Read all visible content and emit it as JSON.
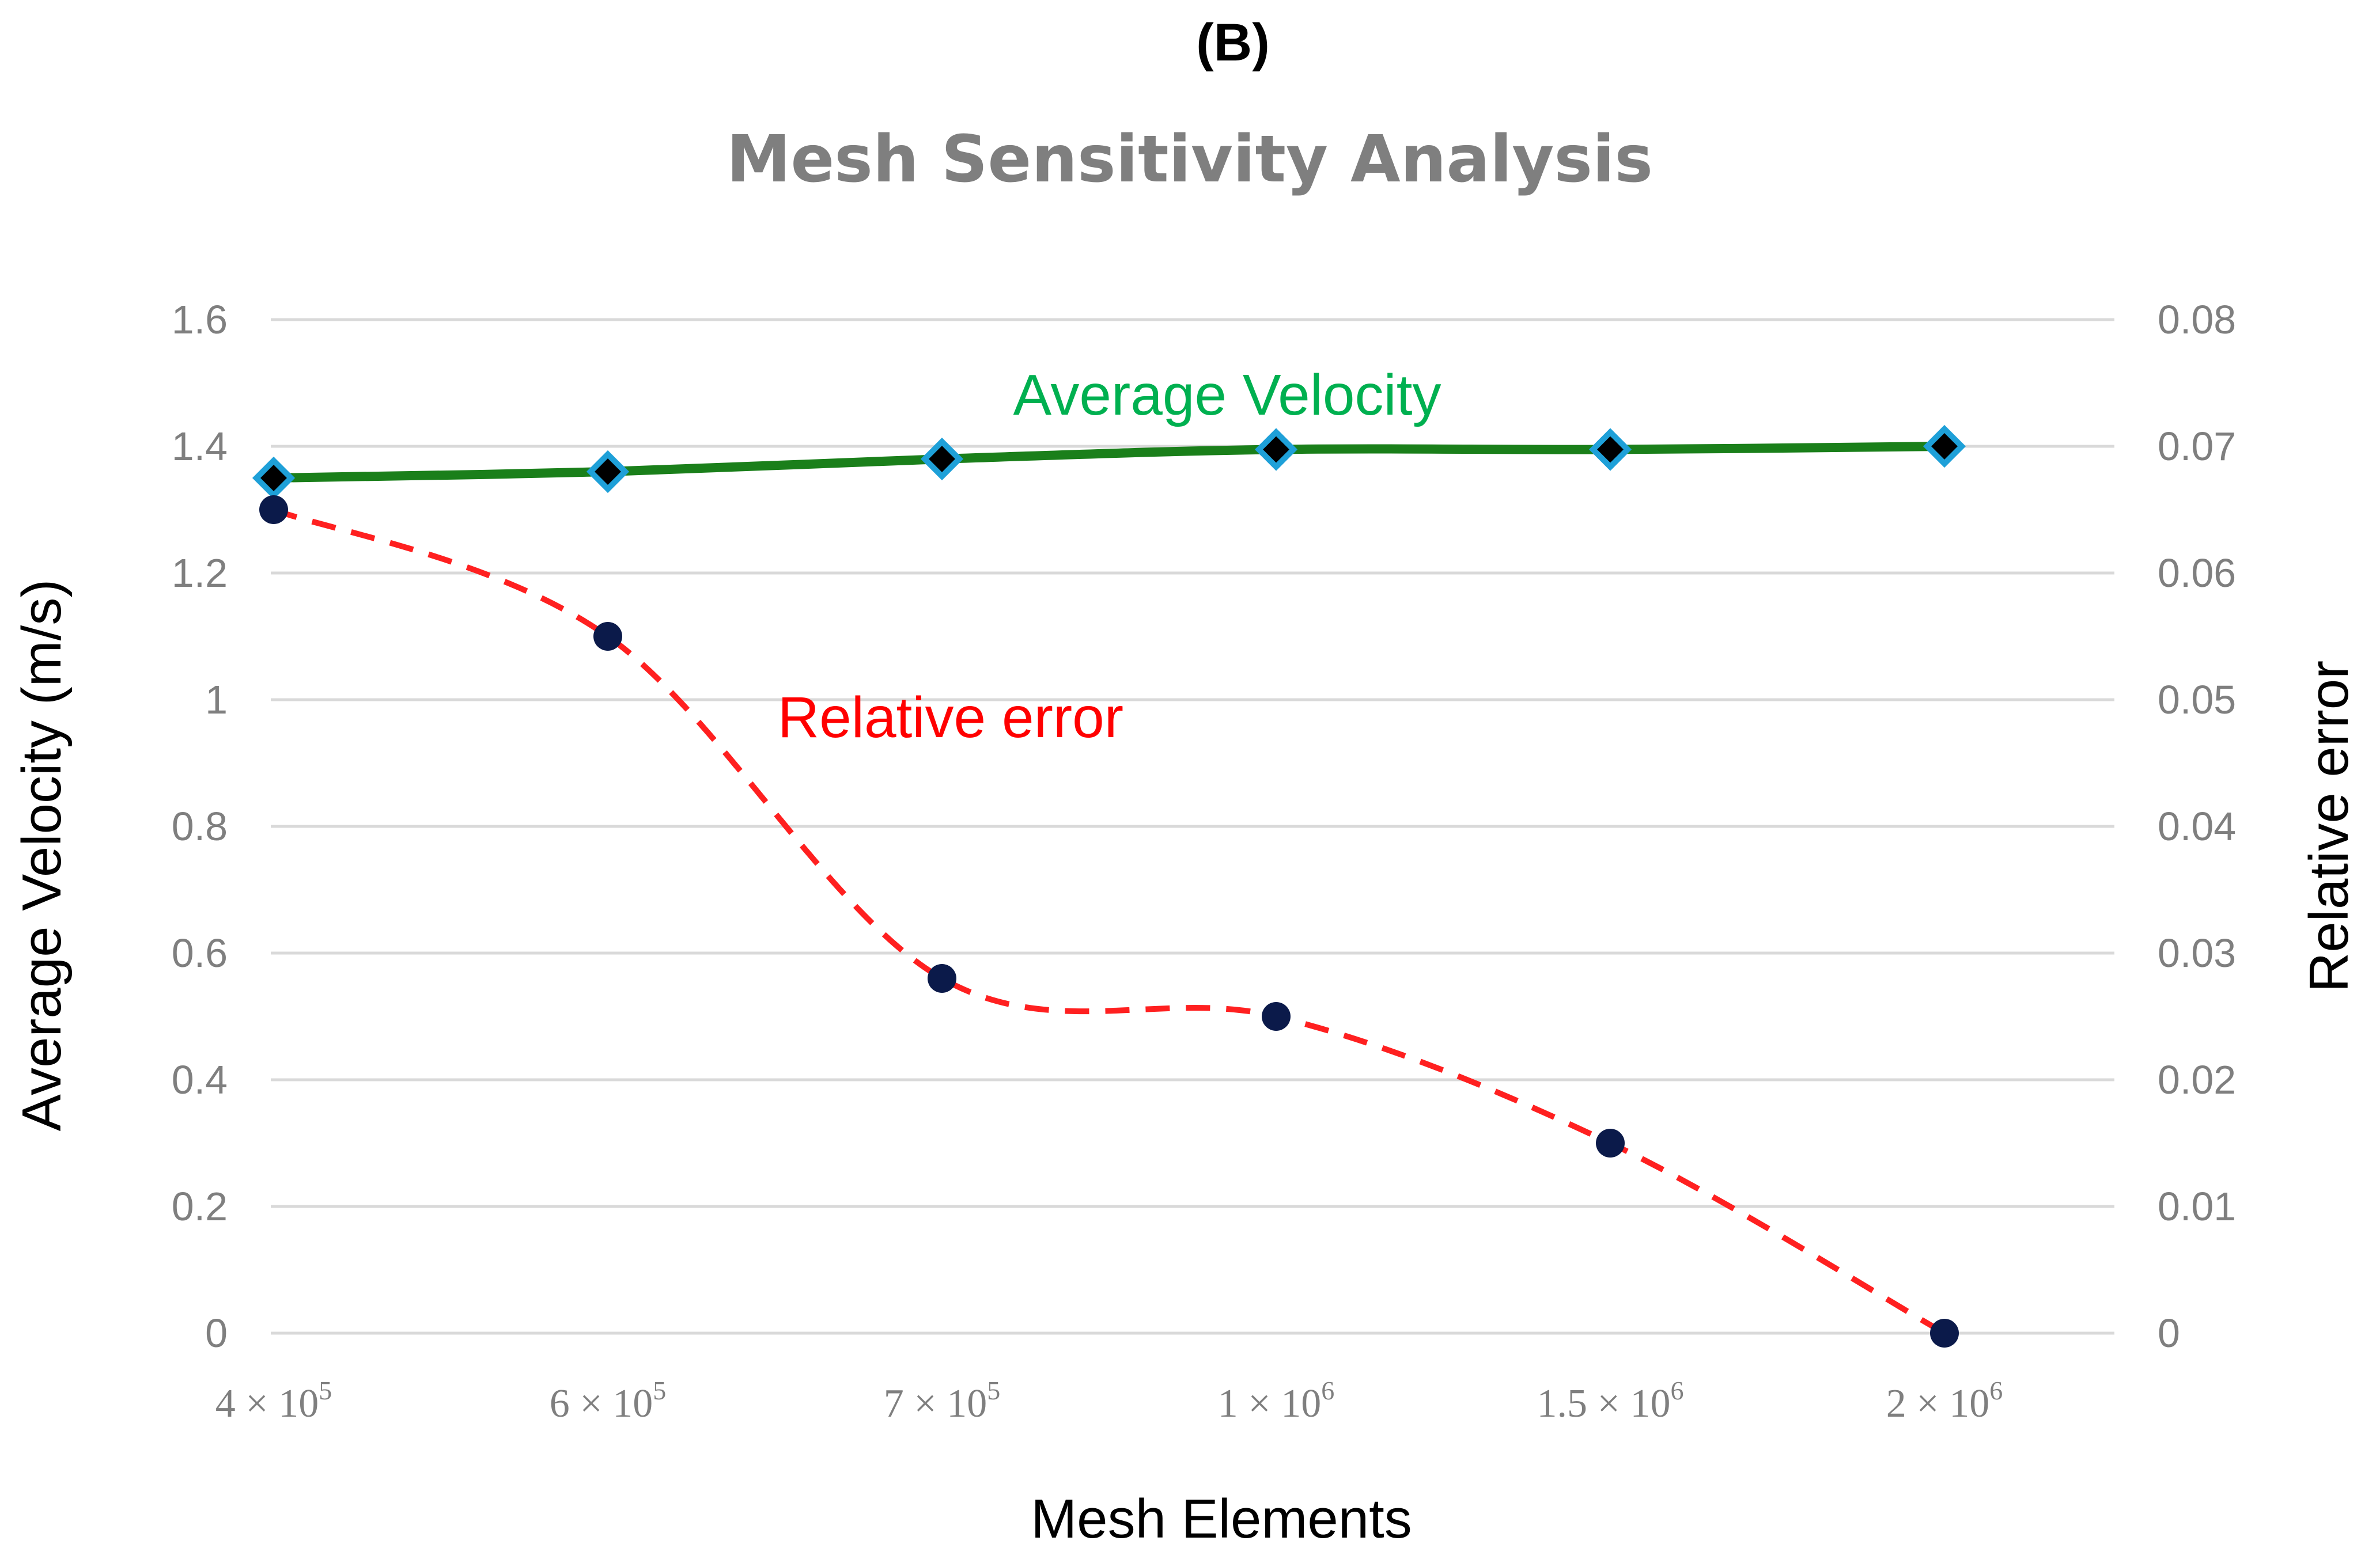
{
  "panel_label": "(B)",
  "chart_data": {
    "type": "line",
    "title": "Mesh Sensitivity Analysis",
    "xlabel": "Mesh Elements",
    "ylabel": "Average Velocity (m/s)",
    "y2label": "Relative error",
    "categories": [
      {
        "base": "4 × 10",
        "exp": "5"
      },
      {
        "base": "6 × 10",
        "exp": "5"
      },
      {
        "base": "7 × 10",
        "exp": "5"
      },
      {
        "base": "1 × 10",
        "exp": "6"
      },
      {
        "base": "1.5 × 10",
        "exp": "6"
      },
      {
        "base": "2 × 10",
        "exp": "6"
      }
    ],
    "ylim": [
      0,
      1.6
    ],
    "y2lim": [
      0,
      0.08
    ],
    "yticks": [
      "0",
      "0.2",
      "0.4",
      "0.6",
      "0.8",
      "1",
      "1.2",
      "1.4",
      "1.6"
    ],
    "y2ticks": [
      "0",
      "0.01",
      "0.02",
      "0.03",
      "0.04",
      "0.05",
      "0.06",
      "0.07",
      "0.08"
    ],
    "grid": true,
    "series": [
      {
        "name": "Average Velocity",
        "axis": "left",
        "values": [
          1.35,
          1.36,
          1.38,
          1.395,
          1.395,
          1.4
        ],
        "color": "#1a7f1a",
        "label_color": "#00b050",
        "marker": "diamond",
        "marker_fill": "#000000",
        "marker_edge": "#1ea0d8",
        "line_style": "solid"
      },
      {
        "name": "Relative error",
        "axis": "right",
        "values": [
          0.065,
          0.055,
          0.028,
          0.025,
          0.015,
          0.0
        ],
        "color": "#ff2020",
        "label_color": "#ff0000",
        "marker": "circle",
        "marker_fill": "#0b1a4a",
        "line_style": "dashed"
      }
    ]
  }
}
